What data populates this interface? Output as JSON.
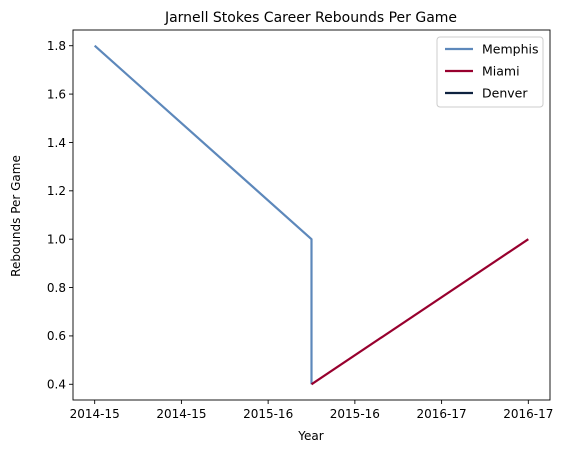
{
  "chart_data": {
    "type": "line",
    "title": "Jarnell Stokes Career Rebounds Per Game",
    "xlabel": "Year",
    "ylabel": "Rebounds Per Game",
    "xlim": [
      -0.1,
      2.1
    ],
    "ylim": [
      0.335,
      1.865
    ],
    "x_ticks": [
      {
        "value": 0.0,
        "label": "2014-15"
      },
      {
        "value": 0.4,
        "label": "2014-15"
      },
      {
        "value": 0.8,
        "label": "2015-16"
      },
      {
        "value": 1.2,
        "label": "2015-16"
      },
      {
        "value": 1.6,
        "label": "2016-17"
      },
      {
        "value": 2.0,
        "label": "2016-17"
      }
    ],
    "y_ticks": [
      0.4,
      0.6,
      0.8,
      1.0,
      1.2,
      1.4,
      1.6,
      1.8
    ],
    "grid": false,
    "legend_position": "top-right",
    "series": [
      {
        "name": "Memphis",
        "color": "#5D88BB",
        "x": [
          0.0,
          1.0,
          1.0
        ],
        "y": [
          1.8,
          1.0,
          0.4
        ]
      },
      {
        "name": "Miami",
        "color": "#98002E",
        "x": [
          1.0,
          2.0
        ],
        "y": [
          0.4,
          1.0
        ]
      },
      {
        "name": "Denver",
        "color": "#0E2240",
        "x": [],
        "y": []
      }
    ]
  }
}
